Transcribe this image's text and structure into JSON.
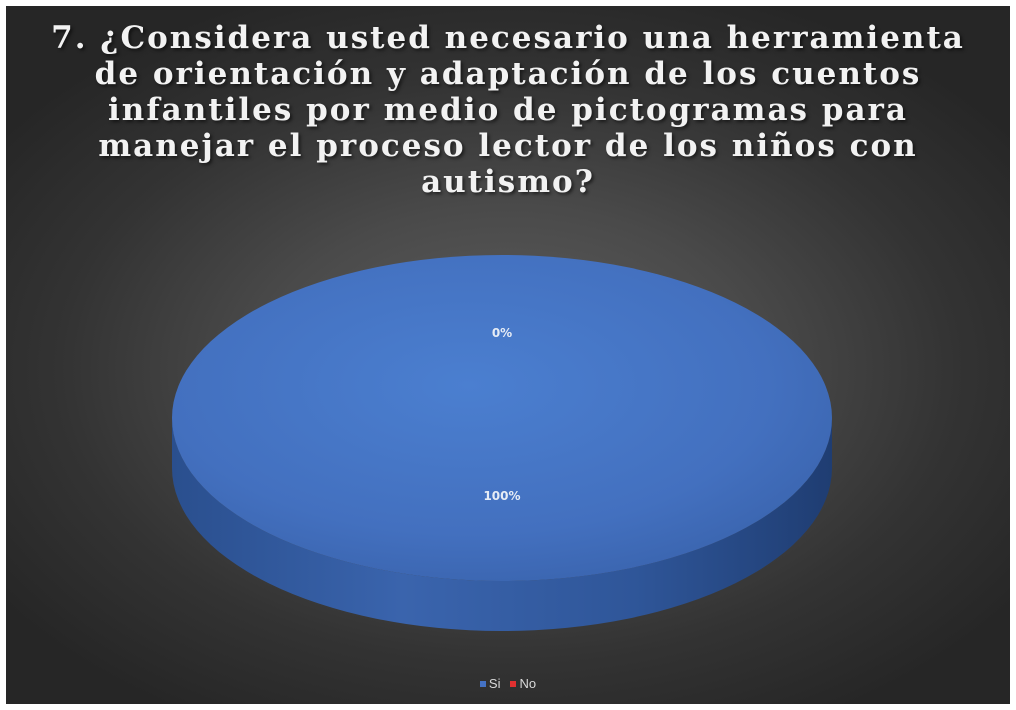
{
  "chart_data": {
    "type": "pie",
    "title": "7. ¿Considera usted necesario una herramienta de orientación y adaptación de los cuentos infantiles por medio de pictogramas para manejar el proceso lector de los niños con autismo?",
    "categories": [
      "Si",
      "No"
    ],
    "values": [
      100,
      0
    ],
    "data_labels": [
      "100%",
      "0%"
    ],
    "colors": [
      "#4472c4",
      "#e03030"
    ],
    "legend_position": "bottom",
    "style": "3d"
  }
}
